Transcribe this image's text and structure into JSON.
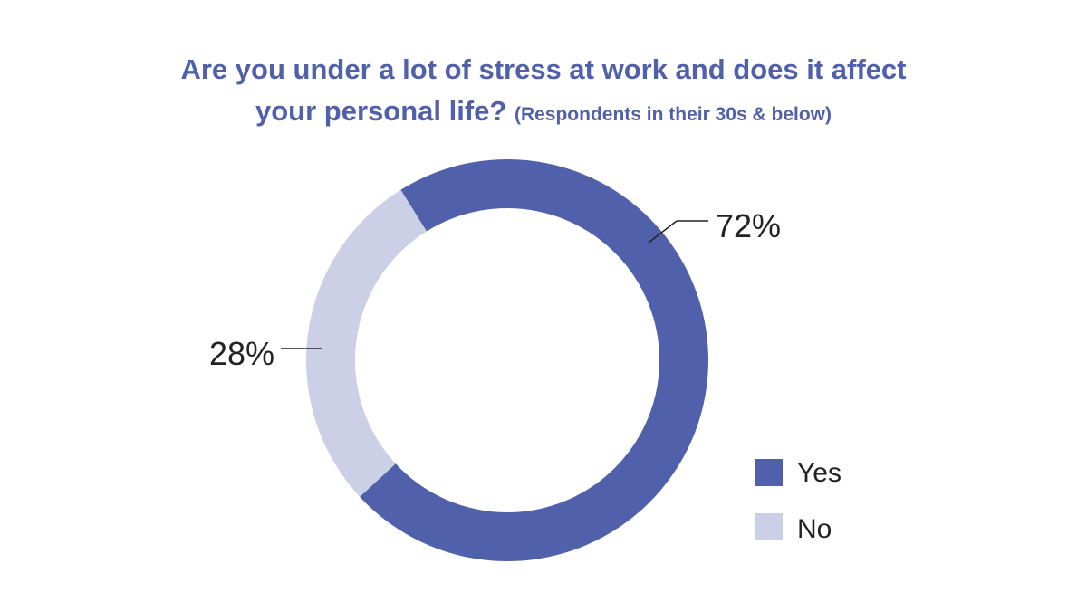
{
  "chart_data": {
    "type": "pie",
    "variant": "donut",
    "title_line1": "Are you under a lot of stress at work and does it affect",
    "title_line2": "your personal life?",
    "subtitle": "(Respondents in their 30s & below)",
    "slices": [
      {
        "label": "Yes",
        "value": 72,
        "display": "72%",
        "color": "#5160aa"
      },
      {
        "label": "No",
        "value": 28,
        "display": "28%",
        "color": "#cbd0e6"
      }
    ],
    "legend": {
      "placement": "bottom-right",
      "items": [
        {
          "label": "Yes",
          "color": "#5160aa"
        },
        {
          "label": "No",
          "color": "#cbd0e6"
        }
      ]
    },
    "title_color": "#5160aa"
  }
}
